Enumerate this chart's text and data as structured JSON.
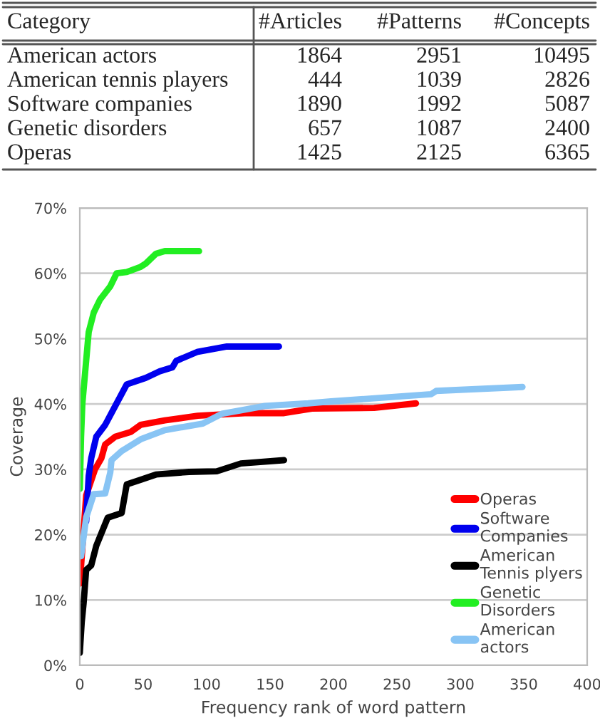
{
  "chart_data": [
    {
      "type": "other",
      "categories": [
        "Category",
        "#Articles",
        "#Patterns",
        "#Concepts"
      ],
      "annotations": [
        "American actors",
        "1864",
        "2951",
        "10495",
        "American tennis players",
        "444",
        "1039",
        "2826",
        "Software companies",
        "1890",
        "1992",
        "5087",
        "Genetic disorders",
        "657",
        "1087",
        "2400",
        "Operas",
        "1425",
        "2125",
        "6365"
      ]
    },
    {
      "type": "line",
      "xlabel": "Frequency rank of word pattern",
      "ylabel": "Coverage",
      "xlim": [
        0,
        400
      ],
      "xticks": [
        0,
        50,
        100,
        150,
        200,
        250,
        300,
        350,
        400
      ],
      "ylim": [
        0,
        70
      ],
      "yticks": [
        {
          "value": 0,
          "label": "0%"
        },
        {
          "value": 10,
          "label": "10%"
        },
        {
          "value": 20,
          "label": "20%"
        },
        {
          "value": 30,
          "label": "30%"
        },
        {
          "value": 40,
          "label": "40%"
        },
        {
          "value": 50,
          "label": "50%"
        },
        {
          "value": 60,
          "label": "60%"
        },
        {
          "value": 70,
          "label": "70%"
        }
      ],
      "grid": "y",
      "legend": "bottom right",
      "marker": "none",
      "line_style": "solid",
      "series": [
        {
          "name": "Operas",
          "color": "#ff0000",
          "x": [
            0,
            5,
            12,
            17,
            20,
            28,
            40,
            48,
            67,
            93,
            130,
            161,
            183,
            232,
            265
          ],
          "values": [
            12.5,
            26,
            30,
            31.7,
            33.8,
            35,
            35.7,
            36.8,
            37.5,
            38.2,
            38.6,
            38.6,
            39.3,
            39.4,
            40.1
          ]
        },
        {
          "name": "Software\nCompanies",
          "color": "#0000ee",
          "x": [
            5,
            7,
            9,
            13,
            20,
            26,
            37,
            52,
            63,
            73,
            76,
            93,
            116,
            157
          ],
          "values": [
            22,
            29,
            31.7,
            35,
            36.8,
            39,
            43,
            44,
            45,
            45.6,
            46.6,
            48,
            48.8,
            48.8
          ]
        },
        {
          "name": "American\nTennis plyers",
          "color": "#000000",
          "x": [
            0,
            1.5,
            3,
            5,
            9,
            13,
            22,
            33,
            37,
            48,
            60,
            86,
            108,
            127,
            161
          ],
          "values": [
            1.9,
            6.6,
            9.5,
            14.6,
            15.3,
            18.3,
            22.6,
            23.3,
            27.7,
            28.4,
            29.2,
            29.6,
            29.7,
            30.9,
            31.4
          ]
        },
        {
          "name": "Genetic\nDisorders",
          "color": "#22ee22",
          "x": [
            0,
            1,
            2,
            7,
            11,
            16,
            24,
            29,
            37,
            48,
            52,
            60,
            67,
            94
          ],
          "values": [
            27,
            35,
            40,
            51,
            54,
            56,
            58,
            60,
            60.2,
            61,
            61.5,
            63,
            63.4,
            63.4
          ]
        },
        {
          "name": "American\nactors",
          "color": "#88c4f4",
          "x": [
            1,
            5,
            11,
            20,
            24,
            25,
            33,
            48,
            67,
            97,
            112,
            146,
            180,
            198,
            277,
            281,
            337,
            349
          ],
          "values": [
            16.7,
            22.6,
            26.2,
            26.3,
            29.5,
            31.4,
            32.8,
            34.6,
            36,
            37,
            38.5,
            39.7,
            40.1,
            40.4,
            41.5,
            42,
            42.5,
            42.6
          ]
        }
      ]
    }
  ]
}
